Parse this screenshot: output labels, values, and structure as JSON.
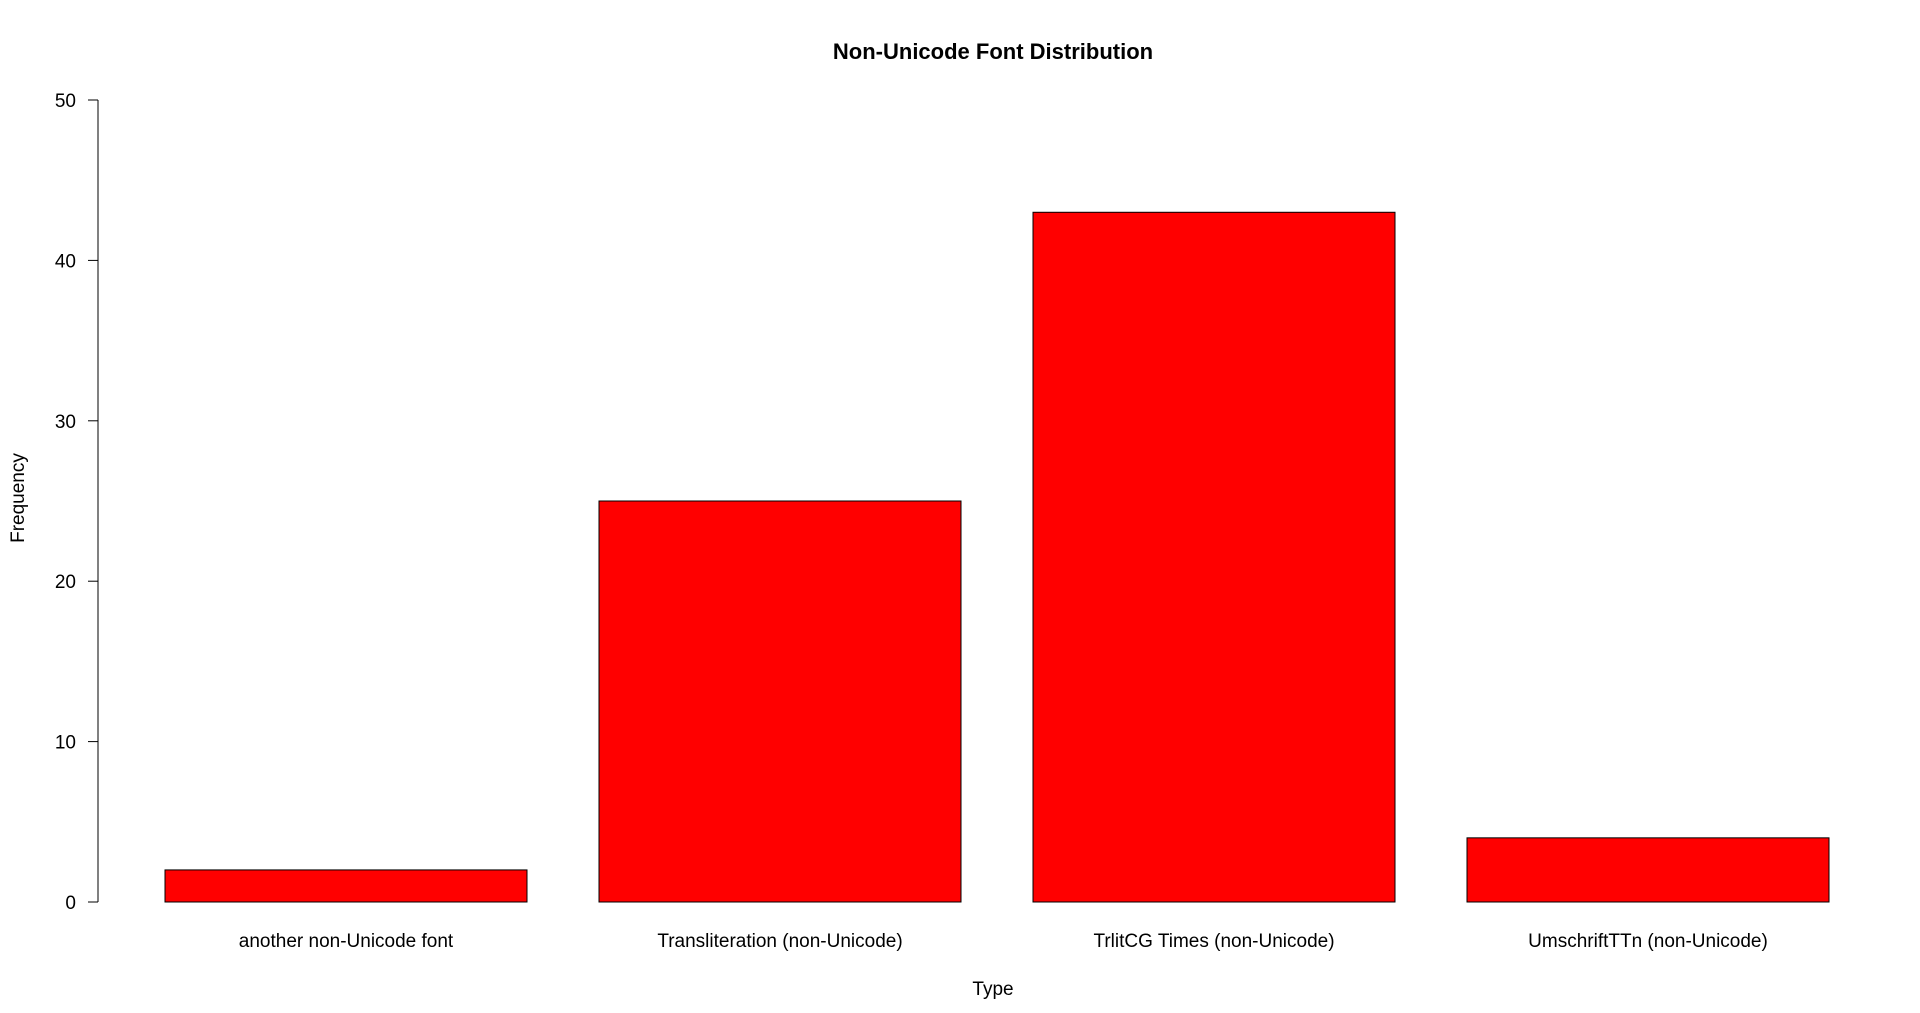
{
  "chart_data": {
    "type": "bar",
    "title": "Non-Unicode Font Distribution",
    "xlabel": "Type",
    "ylabel": "Frequency",
    "categories": [
      "another non-Unicode font",
      "Transliteration (non-Unicode)",
      "TrlitCG Times (non-Unicode)",
      "UmschriftTTn (non-Unicode)"
    ],
    "values": [
      2,
      25,
      43,
      4
    ],
    "ylim": [
      0,
      50
    ],
    "yticks": [
      0,
      10,
      20,
      30,
      40,
      50
    ],
    "bar_color": "#ff0000",
    "bar_border_color": "#000000",
    "grid": false,
    "legend": "none"
  }
}
